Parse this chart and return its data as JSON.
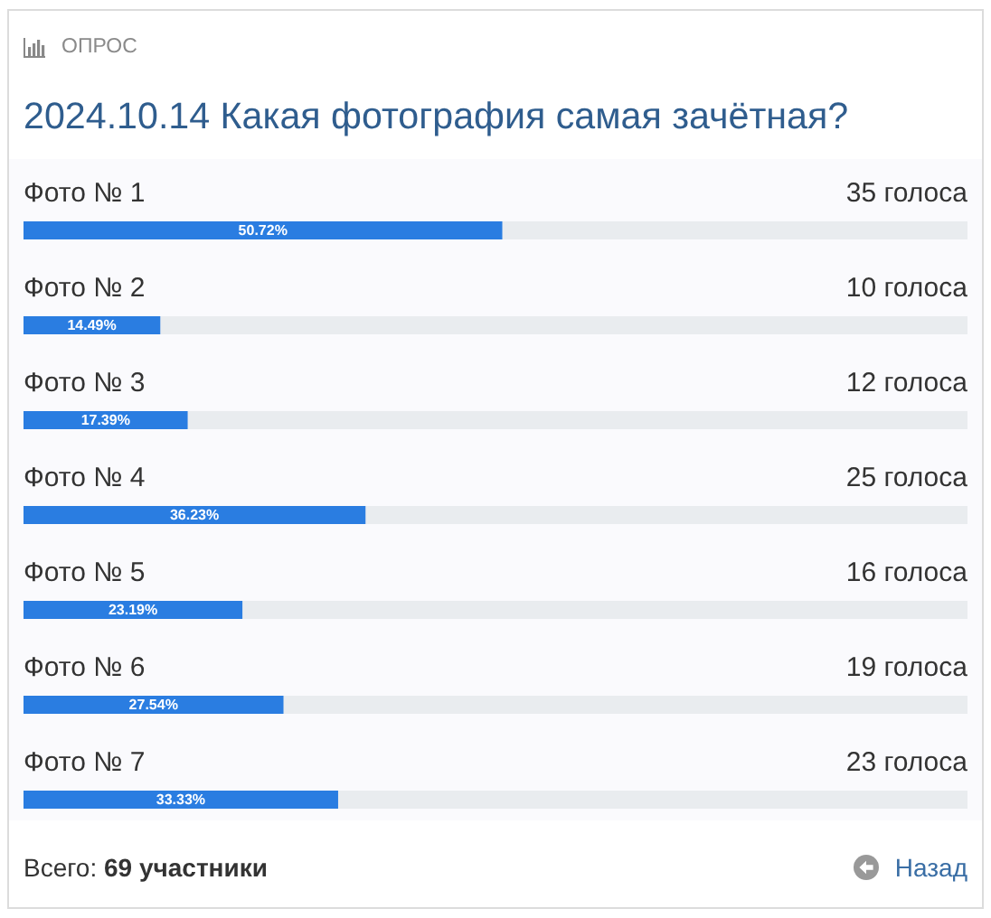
{
  "chart_data": {
    "type": "bar",
    "orientation": "horizontal",
    "title": "2024.10.14 Какая фотография самая зачётная?",
    "categories": [
      "Фото № 1",
      "Фото № 2",
      "Фото № 3",
      "Фото № 4",
      "Фото № 5",
      "Фото № 6",
      "Фото № 7"
    ],
    "values": [
      50.72,
      14.49,
      17.39,
      36.23,
      23.19,
      27.54,
      33.33
    ],
    "value_labels": [
      "50.72%",
      "14.49%",
      "17.39%",
      "36.23%",
      "23.19%",
      "27.54%",
      "33.33%"
    ],
    "color": "#2a7de1",
    "xlim": [
      0,
      100
    ],
    "tick_labels": "y",
    "annotations": [
      "ОПРОС",
      "35 голоса",
      "10 голоса",
      "12 голоса",
      "25 голоса",
      "16 голоса",
      "19 голоса",
      "23 голоса",
      "Всего: 69 участники",
      "Назад"
    ]
  }
}
